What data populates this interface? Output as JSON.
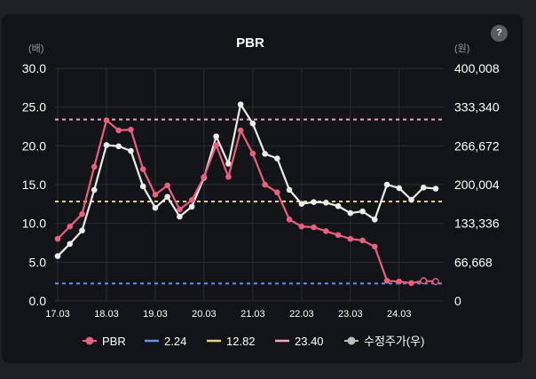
{
  "chart_data": {
    "type": "line",
    "title": "PBR",
    "left_unit": "(배)",
    "right_unit": "(원)",
    "left_axis": {
      "min": 0,
      "max": 30,
      "ticks": [
        "0.0",
        "5.0",
        "10.0",
        "15.0",
        "20.0",
        "25.0",
        "30.0"
      ]
    },
    "right_axis": {
      "min": 0,
      "max": 400008,
      "ticks": [
        "0",
        "66,668",
        "133,336",
        "200,004",
        "266,672",
        "333,340",
        "400,008"
      ]
    },
    "x_ticks": [
      "17.03",
      "18.03",
      "19.03",
      "20.03",
      "21.03",
      "22.03",
      "23.03",
      "24.03"
    ],
    "x_tick_index": [
      0,
      4,
      8,
      12,
      16,
      20,
      24,
      28
    ],
    "series": [
      {
        "name": "PBR",
        "axis": "left",
        "color": "#e8607f",
        "values": [
          8.0,
          9.6,
          11.2,
          17.3,
          23.3,
          22.0,
          22.1,
          17.0,
          13.7,
          14.9,
          11.8,
          13.0,
          16.0,
          20.1,
          16.0,
          22.0,
          19.0,
          15.0,
          14.0,
          10.5,
          9.6,
          9.5,
          9.0,
          8.5,
          8.0,
          7.8,
          7.0,
          2.6,
          2.5,
          2.3,
          2.6,
          2.5
        ],
        "hollow_last": 2
      },
      {
        "name": "수정주가(우)",
        "axis": "right",
        "color": "#ececec",
        "values": [
          77000,
          98000,
          121000,
          191000,
          268000,
          266000,
          258000,
          197000,
          160000,
          179000,
          145000,
          162000,
          212000,
          283000,
          236000,
          338000,
          305000,
          253000,
          245000,
          191000,
          167000,
          170000,
          169000,
          163000,
          151000,
          154000,
          140000,
          200000,
          194000,
          174000,
          195000,
          193000
        ]
      }
    ],
    "reference_lines": [
      {
        "name": "2.24",
        "value": 2.24,
        "color": "#6b8fe8"
      },
      {
        "name": "12.82",
        "value": 12.82,
        "color": "#e8d37a"
      },
      {
        "name": "23.40",
        "value": 23.4,
        "color": "#f0a8c0"
      }
    ],
    "legend": [
      {
        "label": "PBR",
        "color": "#e8607f",
        "kind": "dot"
      },
      {
        "label": "2.24",
        "color": "#6b8fe8",
        "kind": "line"
      },
      {
        "label": "12.82",
        "color": "#e8d37a",
        "kind": "line"
      },
      {
        "label": "23.40",
        "color": "#f0a8c0",
        "kind": "line"
      },
      {
        "label": "수정주가(우)",
        "color": "#bdbdbd",
        "kind": "dot"
      }
    ]
  },
  "help_icon": "?"
}
